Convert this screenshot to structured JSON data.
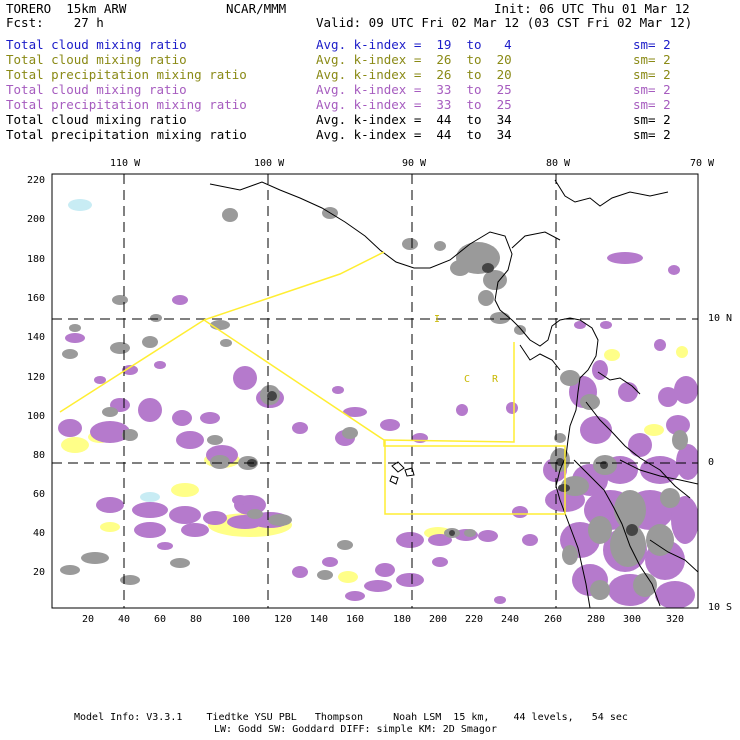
{
  "header": {
    "model": "TORERO  15km ARW",
    "center": "NCAR/MMM",
    "init": "Init: 06 UTC Thu 01 Mar 12",
    "fcst": "Fcst:    27 h",
    "valid": "Valid: 09 UTC Fri 02 Mar 12 (03 CST Fri 02 Mar 12)"
  },
  "legend": [
    {
      "name": "Total cloud mixing ratio",
      "kindex": "Avg. k-index =  19  to   4",
      "sm": "sm= 2",
      "color": "#1c1cc8"
    },
    {
      "name": "Total cloud mixing ratio",
      "kindex": "Avg. k-index =  26  to  20",
      "sm": "sm= 2",
      "color": "#8a8a16"
    },
    {
      "name": "Total precipitation mixing ratio",
      "kindex": "Avg. k-index =  26  to  20",
      "sm": "sm= 2",
      "color": "#8a8a16"
    },
    {
      "name": "Total cloud mixing ratio",
      "kindex": "Avg. k-index =  33  to  25",
      "sm": "sm= 2",
      "color": "#a65cbf"
    },
    {
      "name": "Total precipitation mixing ratio",
      "kindex": "Avg. k-index =  33  to  25",
      "sm": "sm= 2",
      "color": "#a65cbf"
    },
    {
      "name": "Total cloud mixing ratio",
      "kindex": "Avg. k-index =  44  to  34",
      "sm": "sm= 2",
      "color": "#000000"
    },
    {
      "name": "Total precipitation mixing ratio",
      "kindex": "Avg. k-index =  44  to  34",
      "sm": "sm= 2",
      "color": "#000000"
    }
  ],
  "map": {
    "top_labels": [
      "110 W",
      "100 W",
      "90 W",
      "80 W",
      "70 W"
    ],
    "right_labels": [
      "10 N",
      "0",
      "10 S"
    ],
    "y_ticks": [
      "220",
      "200",
      "180",
      "160",
      "140",
      "120",
      "100",
      "80",
      "60",
      "40",
      "20"
    ],
    "x_ticks": [
      "20",
      "40",
      "60",
      "80",
      "100",
      "120",
      "140",
      "160",
      "180",
      "200",
      "220",
      "240",
      "260",
      "280",
      "300",
      "320"
    ],
    "region_labels": [
      "I",
      "C",
      "R"
    ]
  },
  "footer": {
    "line1": "Model Info: V3.3.1    Tiedtke YSU PBL   Thompson     Noah LSM  15 km,    44 levels,   54 sec",
    "line2": "LW: Godd SW: Goddard DIFF: simple KM: 2D Smagor"
  },
  "colors": {
    "yellow_fill": "#ffff88",
    "purple_fill": "#b57acc",
    "gray_fill": "#9a9a9a",
    "domain_line": "#ffee33",
    "cyan_fill": "#c8ecf4"
  }
}
